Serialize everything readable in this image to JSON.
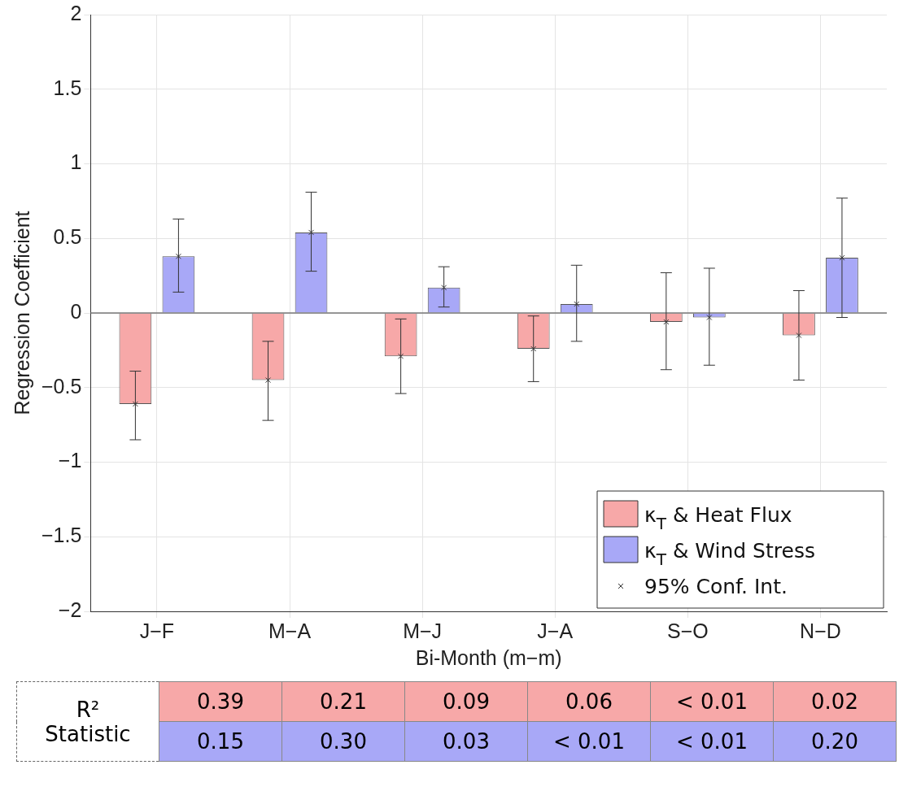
{
  "chart_data": {
    "type": "bar",
    "xlabel": "Bi-Month (m−m)",
    "ylabel": "Regression Coefficient",
    "categories": [
      "J−F",
      "M−A",
      "M−J",
      "J−A",
      "S−O",
      "N−D"
    ],
    "series": [
      {
        "name": "κ$_{T}$ & Heat Flux",
        "color": "#f7a8a8",
        "values": [
          -0.61,
          -0.45,
          -0.29,
          -0.24,
          -0.06,
          -0.15
        ],
        "errors": [
          [
            -0.85,
            -0.39
          ],
          [
            -0.72,
            -0.19
          ],
          [
            -0.54,
            -0.04
          ],
          [
            -0.46,
            -0.02
          ],
          [
            -0.38,
            0.27
          ],
          [
            -0.45,
            0.15
          ]
        ]
      },
      {
        "name": "κ$_{T}$ & Wind Stress",
        "color": "#a8a8f7",
        "values": [
          0.38,
          0.54,
          0.17,
          0.06,
          -0.03,
          0.37
        ],
        "errors": [
          [
            0.14,
            0.63
          ],
          [
            0.28,
            0.81
          ],
          [
            0.04,
            0.31
          ],
          [
            -0.19,
            0.32
          ],
          [
            -0.35,
            0.3
          ],
          [
            -0.03,
            0.77
          ]
        ]
      },
      {
        "type": "scatter",
        "name": "95% Conf. Int.",
        "color": "#333333",
        "x": [
          "J−F",
          "J−F",
          "M−A",
          "M−A",
          "M−J",
          "M−J",
          "J−A",
          "J−A",
          "S−O",
          "S−O",
          "N−D",
          "N−D"
        ],
        "values": [
          -0.61,
          0.38,
          -0.45,
          0.54,
          -0.29,
          0.17,
          -0.24,
          0.06,
          -0.06,
          -0.03,
          -0.15,
          0.37
        ]
      }
    ],
    "ylim": [
      -2,
      2
    ],
    "yticks": [
      -2,
      -1.5,
      -1,
      -0.5,
      0,
      0.5,
      1,
      1.5,
      2
    ],
    "grid": true,
    "legend": "bottom right",
    "marker": "cross",
    "annotations": [
      "R² Statistic",
      "0.39",
      "0.21",
      "0.09",
      "0.06",
      "< 0.01",
      "0.02",
      "0.15",
      "0.30",
      "0.03",
      "< 0.01",
      "< 0.01",
      "0.20"
    ]
  }
}
